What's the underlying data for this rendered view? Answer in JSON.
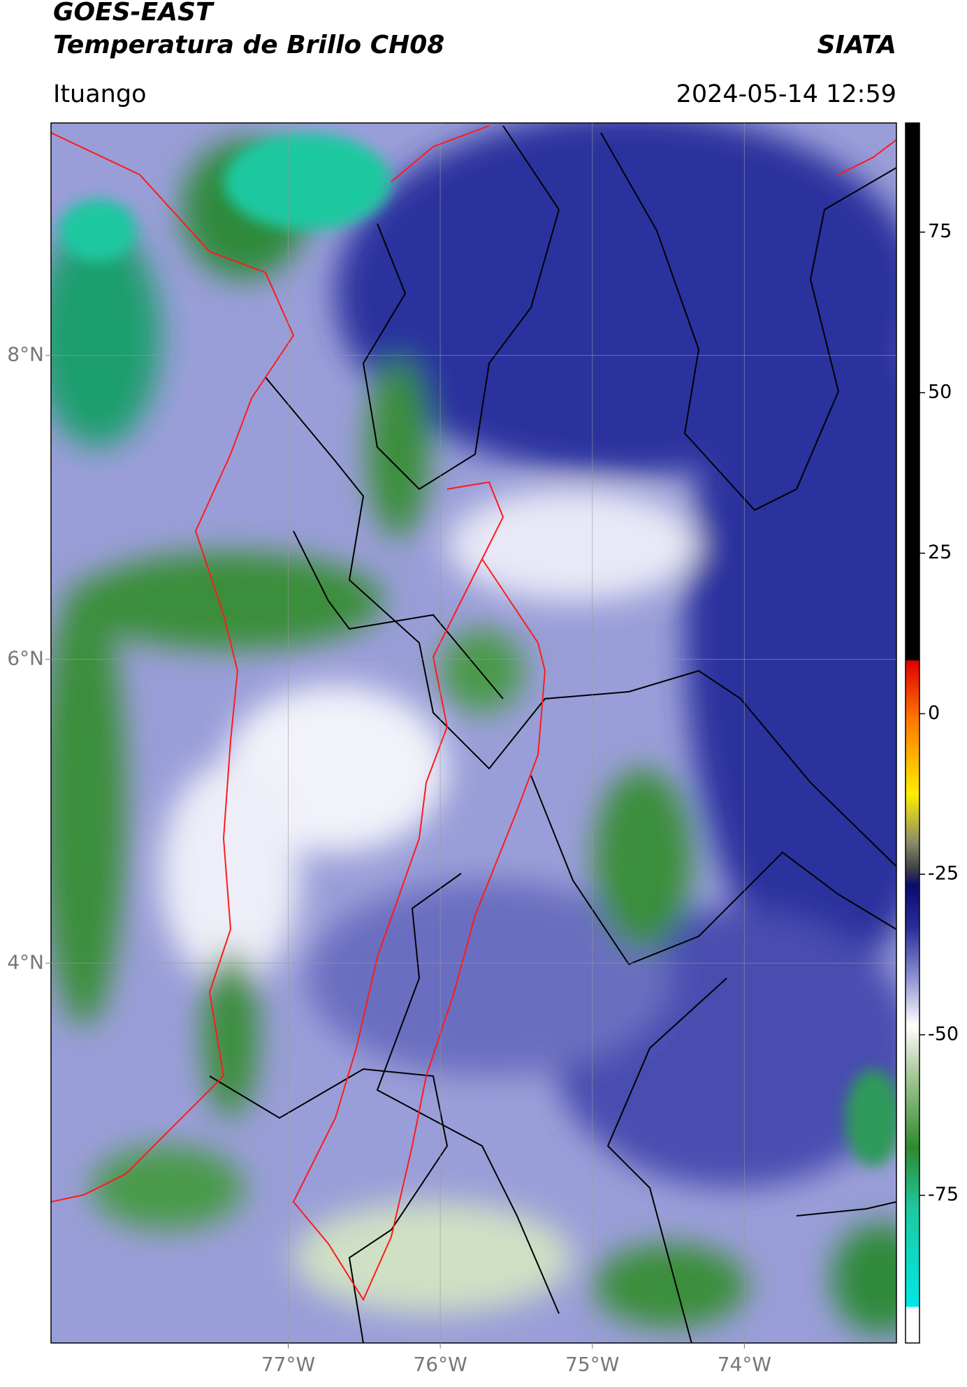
{
  "chart_data": {
    "type": "map",
    "title": "GOES-EAST",
    "subtitle": "Temperatura de Brillo CH08",
    "source": "SIATA",
    "location": "Ituango",
    "timestamp": "2024-05-14 12:59",
    "xlim": [
      -78.56,
      -73.0
    ],
    "ylim": [
      1.5,
      9.53
    ],
    "xticks": [
      {
        "value": -77,
        "label": "77°W"
      },
      {
        "value": -76,
        "label": "76°W"
      },
      {
        "value": -75,
        "label": "75°W"
      },
      {
        "value": -74,
        "label": "74°W"
      }
    ],
    "yticks": [
      {
        "value": 8,
        "label": "8°N"
      },
      {
        "value": 6,
        "label": "6°N"
      },
      {
        "value": 4,
        "label": "4°N"
      }
    ],
    "grid": true,
    "colorbar": {
      "lim": [
        -98,
        92
      ],
      "ticks": [
        75,
        50,
        25,
        0,
        -25,
        -50,
        -75
      ]
    }
  }
}
